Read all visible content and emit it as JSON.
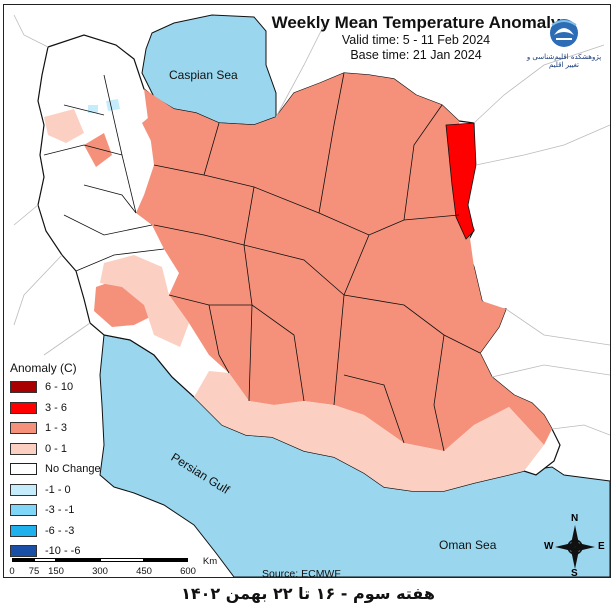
{
  "header": {
    "title": "Weekly Mean Temperature Anomaly",
    "valid_time": "Valid time: 5 - 11 Feb 2024",
    "base_time": "Base time: 21 Jan 2024"
  },
  "logo": {
    "icon": "institute-logo-icon",
    "text": "پژوهشکده اقلیم‌شناسی و تغییر اقلیم"
  },
  "legend": {
    "title": "Anomaly (C)",
    "items": [
      {
        "label": "6 - 10",
        "color": "#a80000"
      },
      {
        "label": "3 - 6",
        "color": "#ff0000"
      },
      {
        "label": "1 - 3",
        "color": "#f5917a"
      },
      {
        "label": "0 - 1",
        "color": "#fbd0c2"
      },
      {
        "label": "No Change",
        "color": "#ffffff"
      },
      {
        "label": "-1 - 0",
        "color": "#c5ecfb"
      },
      {
        "label": "-3 - -1",
        "color": "#7fd6f6"
      },
      {
        "label": "-6 - -3",
        "color": "#1fb1ee"
      },
      {
        "label": "-10 - -6",
        "color": "#1a4fa8"
      }
    ]
  },
  "seas": {
    "caspian": "Caspian Sea",
    "persian_gulf": "Persian Gulf",
    "oman": "Oman Sea"
  },
  "source": "Source: ECMWF",
  "scale": {
    "ticks": [
      "0",
      "75",
      "150",
      "300",
      "450",
      "600"
    ],
    "unit": "Km"
  },
  "compass": {
    "n": "N",
    "s": "S",
    "e": "E",
    "w": "W"
  },
  "footer": "هفته سوم - ۱۶ تا ۲۲ بهمن ۱۴۰۲",
  "colors": {
    "sea": "#9ad7ef",
    "border": "#111111",
    "neighbor_border": "#bbbbbb"
  }
}
